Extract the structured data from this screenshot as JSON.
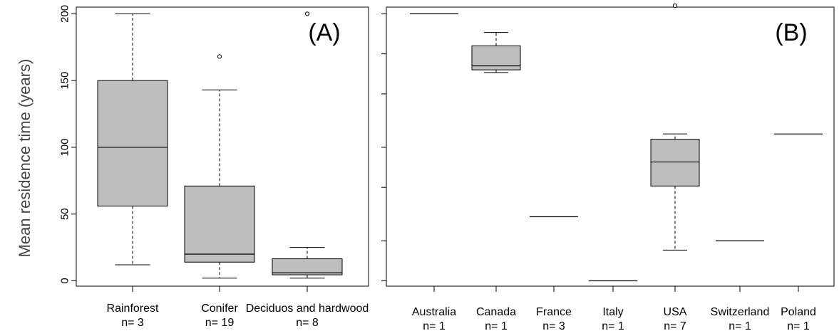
{
  "ylabel": "Mean residence time (years)",
  "chart_data": [
    {
      "type": "box",
      "panel_label": "(A)",
      "ylabel": "Mean residence time (years)",
      "ylim": [
        -4,
        205
      ],
      "yticks": [
        0,
        50,
        100,
        150,
        200
      ],
      "grid": false,
      "categories": [
        "Rainforest",
        "Conifer",
        "Deciduos and hardwood"
      ],
      "counts": [
        "n= 3",
        "n= 19",
        "n= 8"
      ],
      "boxes": [
        {
          "name": "Rainforest",
          "whisker_low": 12,
          "q1": 56,
          "median": 100,
          "q3": 150,
          "whisker_high": 200,
          "outliers": []
        },
        {
          "name": "Conifer",
          "whisker_low": 2,
          "q1": 14,
          "median": 20,
          "q3": 71,
          "whisker_high": 143,
          "outliers": [
            168
          ]
        },
        {
          "name": "Deciduos and hardwood",
          "whisker_low": 2,
          "q1": 4.5,
          "median": 6,
          "q3": 16.5,
          "whisker_high": 25,
          "outliers": [
            200
          ]
        }
      ]
    },
    {
      "type": "box",
      "panel_label": "(B)",
      "ylim": [
        -4,
        205
      ],
      "yticks": [
        0,
        30,
        70,
        100,
        140,
        170,
        200
      ],
      "grid": false,
      "categories": [
        "Australia",
        "Canada",
        "France",
        "Italy",
        "USA",
        "Switzerland",
        "Poland"
      ],
      "counts": [
        "n= 1",
        "n= 1",
        "n= 3",
        "n= 1",
        "n= 7",
        "n= 1",
        "n= 1"
      ],
      "boxes": [
        {
          "name": "Australia",
          "whisker_low": 200,
          "q1": 200,
          "median": 200,
          "q3": 200,
          "whisker_high": 200,
          "outliers": []
        },
        {
          "name": "Canada",
          "whisker_low": 156,
          "q1": 158,
          "median": 161,
          "q3": 176,
          "whisker_high": 186,
          "outliers": []
        },
        {
          "name": "France",
          "whisker_low": 48,
          "q1": 48,
          "median": 48,
          "q3": 48,
          "whisker_high": 48,
          "outliers": []
        },
        {
          "name": "Italy",
          "whisker_low": 0,
          "q1": 0,
          "median": 0,
          "q3": 0,
          "whisker_high": 0,
          "outliers": []
        },
        {
          "name": "USA",
          "whisker_low": 23,
          "q1": 71,
          "median": 89,
          "q3": 106,
          "whisker_high": 110,
          "outliers": [
            206
          ]
        },
        {
          "name": "Switzerland",
          "whisker_low": 30,
          "q1": 30,
          "median": 30,
          "q3": 30,
          "whisker_high": 30,
          "outliers": []
        },
        {
          "name": "Poland",
          "whisker_low": 110,
          "q1": 110,
          "median": 110,
          "q3": 110,
          "whisker_high": 110,
          "outliers": []
        }
      ]
    }
  ]
}
